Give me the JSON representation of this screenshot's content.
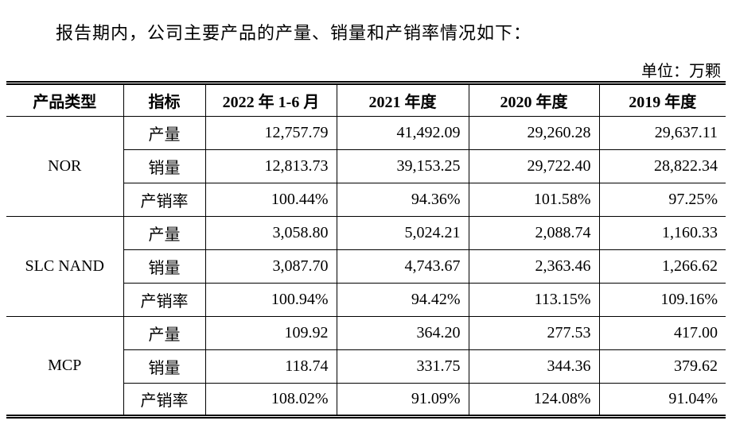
{
  "intro": "报告期内，公司主要产品的产量、销量和产销率情况如下：",
  "unit": "单位：万颗",
  "table": {
    "header": [
      "产品类型",
      "指标",
      "2022 年 1-6 月",
      "2021 年度",
      "2020 年度",
      "2019 年度"
    ],
    "groups": [
      {
        "product": "NOR",
        "rows": [
          [
            "产量",
            "12,757.79",
            "41,492.09",
            "29,260.28",
            "29,637.11"
          ],
          [
            "销量",
            "12,813.73",
            "39,153.25",
            "29,722.40",
            "28,822.34"
          ],
          [
            "产销率",
            "100.44%",
            "94.36%",
            "101.58%",
            "97.25%"
          ]
        ]
      },
      {
        "product": "SLC NAND",
        "rows": [
          [
            "产量",
            "3,058.80",
            "5,024.21",
            "2,088.74",
            "1,160.33"
          ],
          [
            "销量",
            "3,087.70",
            "4,743.67",
            "2,363.46",
            "1,266.62"
          ],
          [
            "产销率",
            "100.94%",
            "94.42%",
            "113.15%",
            "109.16%"
          ]
        ]
      },
      {
        "product": "MCP",
        "rows": [
          [
            "产量",
            "109.92",
            "364.20",
            "277.53",
            "417.00"
          ],
          [
            "销量",
            "118.74",
            "331.75",
            "344.36",
            "379.62"
          ],
          [
            "产销率",
            "108.02%",
            "91.09%",
            "124.08%",
            "91.04%"
          ]
        ]
      }
    ]
  }
}
